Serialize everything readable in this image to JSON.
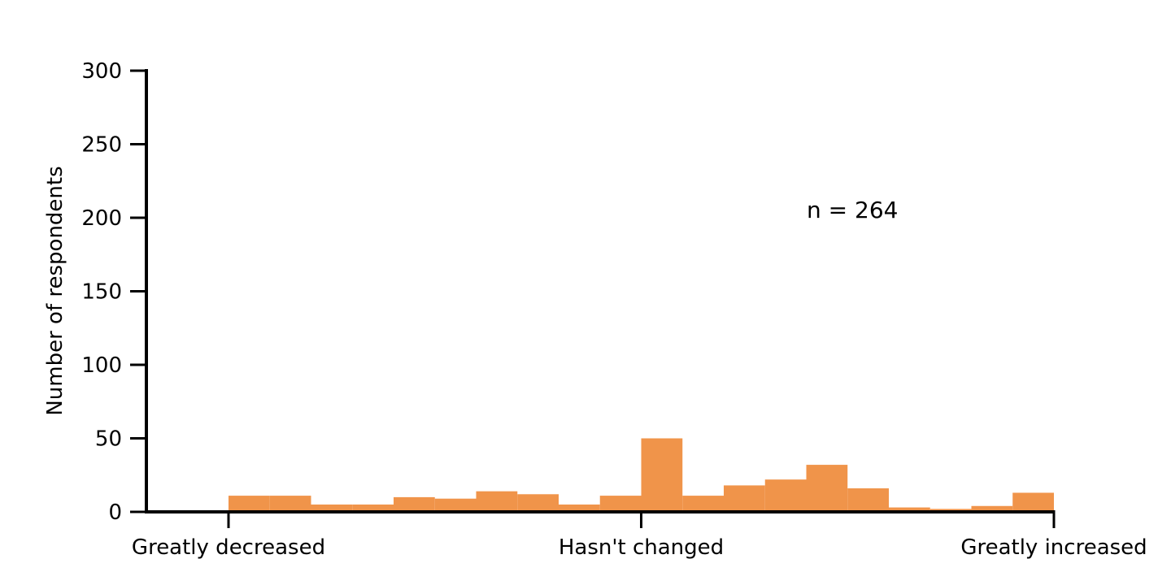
{
  "chart_data": {
    "type": "bar",
    "ylabel": "Number of respondents",
    "xlabel": "",
    "ylim": [
      0,
      300
    ],
    "y_ticks": [
      "0",
      "50",
      "100",
      "150",
      "200",
      "250",
      "300"
    ],
    "x_tick_labels": [
      "Greatly decreased",
      "Hasn't changed",
      "Greatly increased"
    ],
    "bins": [
      {
        "x_start": 0,
        "x_end": 5,
        "value": 11
      },
      {
        "x_start": 5,
        "x_end": 10,
        "value": 11
      },
      {
        "x_start": 10,
        "x_end": 15,
        "value": 5
      },
      {
        "x_start": 15,
        "x_end": 20,
        "value": 5
      },
      {
        "x_start": 20,
        "x_end": 25,
        "value": 10
      },
      {
        "x_start": 25,
        "x_end": 30,
        "value": 9
      },
      {
        "x_start": 30,
        "x_end": 35,
        "value": 14
      },
      {
        "x_start": 35,
        "x_end": 40,
        "value": 12
      },
      {
        "x_start": 40,
        "x_end": 45,
        "value": 5
      },
      {
        "x_start": 45,
        "x_end": 50,
        "value": 11
      },
      {
        "x_start": 50,
        "x_end": 55,
        "value": 50
      },
      {
        "x_start": 55,
        "x_end": 60,
        "value": 11
      },
      {
        "x_start": 60,
        "x_end": 65,
        "value": 18
      },
      {
        "x_start": 65,
        "x_end": 70,
        "value": 22
      },
      {
        "x_start": 70,
        "x_end": 75,
        "value": 32
      },
      {
        "x_start": 75,
        "x_end": 80,
        "value": 16
      },
      {
        "x_start": 80,
        "x_end": 85,
        "value": 3
      },
      {
        "x_start": 85,
        "x_end": 90,
        "value": 2
      },
      {
        "x_start": 90,
        "x_end": 95,
        "value": 4
      },
      {
        "x_start": 95,
        "x_end": 100,
        "value": 13
      }
    ],
    "annotation": "n = 264",
    "bar_color": "#f0944a",
    "grid": false,
    "legend": "none"
  }
}
